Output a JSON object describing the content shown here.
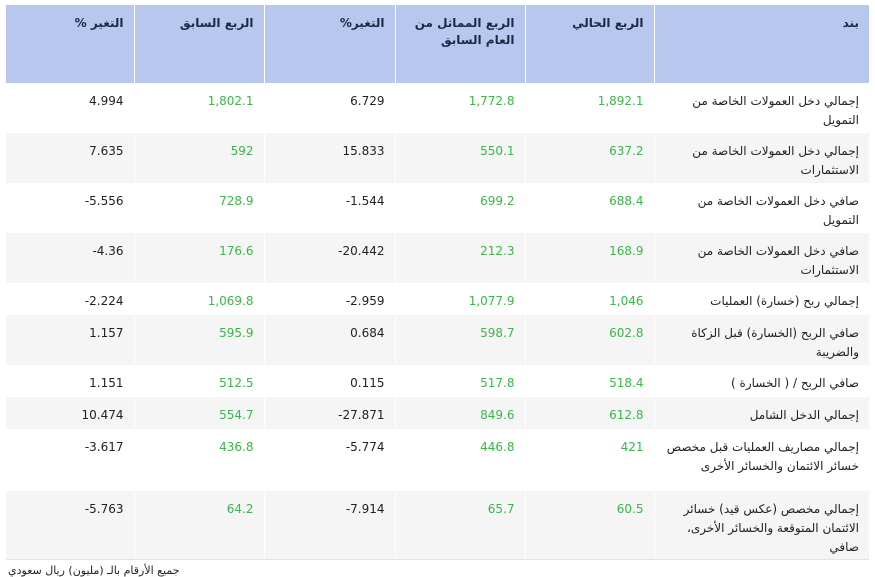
{
  "table": {
    "headers": [
      "بند",
      "الربع الحالي",
      "الربع المماثل من العام السابق",
      "التغير%",
      "الربع السابق",
      "التغير %"
    ],
    "rows": [
      {
        "item": "إجمالي دخل العمولات الخاصة من التمويل",
        "current": "1,892.1",
        "same_last_year": "1,772.8",
        "change_yoy": "6.729",
        "previous": "1,802.1",
        "change_qoq": "4.994"
      },
      {
        "item": "إجمالي دخل العمولات الخاصة من الاستثمارات",
        "current": "637.2",
        "same_last_year": "550.1",
        "change_yoy": "15.833",
        "previous": "592",
        "change_qoq": "7.635"
      },
      {
        "item": "صافي دخل العمولات الخاصة من التمويل",
        "current": "688.4",
        "same_last_year": "699.2",
        "change_yoy": "-1.544",
        "previous": "728.9",
        "change_qoq": "-5.556"
      },
      {
        "item": "صافي دخل العمولات الخاصة من الاستثمارات",
        "current": "168.9",
        "same_last_year": "212.3",
        "change_yoy": "-20.442",
        "previous": "176.6",
        "change_qoq": "-4.36"
      },
      {
        "item": "إجمالي ربح (خسارة) العمليات",
        "current": "1,046",
        "same_last_year": "1,077.9",
        "change_yoy": "-2.959",
        "previous": "1,069.8",
        "change_qoq": "-2.224"
      },
      {
        "item": "صافي الربح (الخسارة) قبل الزكاة والضريبة",
        "current": "602.8",
        "same_last_year": "598.7",
        "change_yoy": "0.684",
        "previous": "595.9",
        "change_qoq": "1.157"
      },
      {
        "item": "صافي الربح / ( الخسارة )",
        "current": "518.4",
        "same_last_year": "517.8",
        "change_yoy": "0.115",
        "previous": "512.5",
        "change_qoq": "1.151"
      },
      {
        "item": "إجمالي الدخل الشامل",
        "current": "612.8",
        "same_last_year": "849.6",
        "change_yoy": "-27.871",
        "previous": "554.7",
        "change_qoq": "10.474"
      },
      {
        "item": "إجمالي مصاريف العمليات قبل مخصص خسائر الائتمان والخسائر الأخرى",
        "current": "421",
        "same_last_year": "446.8",
        "change_yoy": "-5.774",
        "previous": "436.8",
        "change_qoq": "-3.617"
      },
      {
        "item": "إجمالي مخصص (عكس قيد) خسائر الائتمان المتوقعة والخسائر الأخرى، صافي",
        "current": "60.5",
        "same_last_year": "65.7",
        "change_yoy": "-7.914",
        "previous": "64.2",
        "change_qoq": "-5.763"
      }
    ]
  },
  "footnote": "جميع الأرقام بالـ (مليون) ريال سعودي",
  "colors": {
    "header_bg": "#b8c7ee",
    "value_green": "#3cb54a",
    "row_alt": "#f5f5f5"
  }
}
